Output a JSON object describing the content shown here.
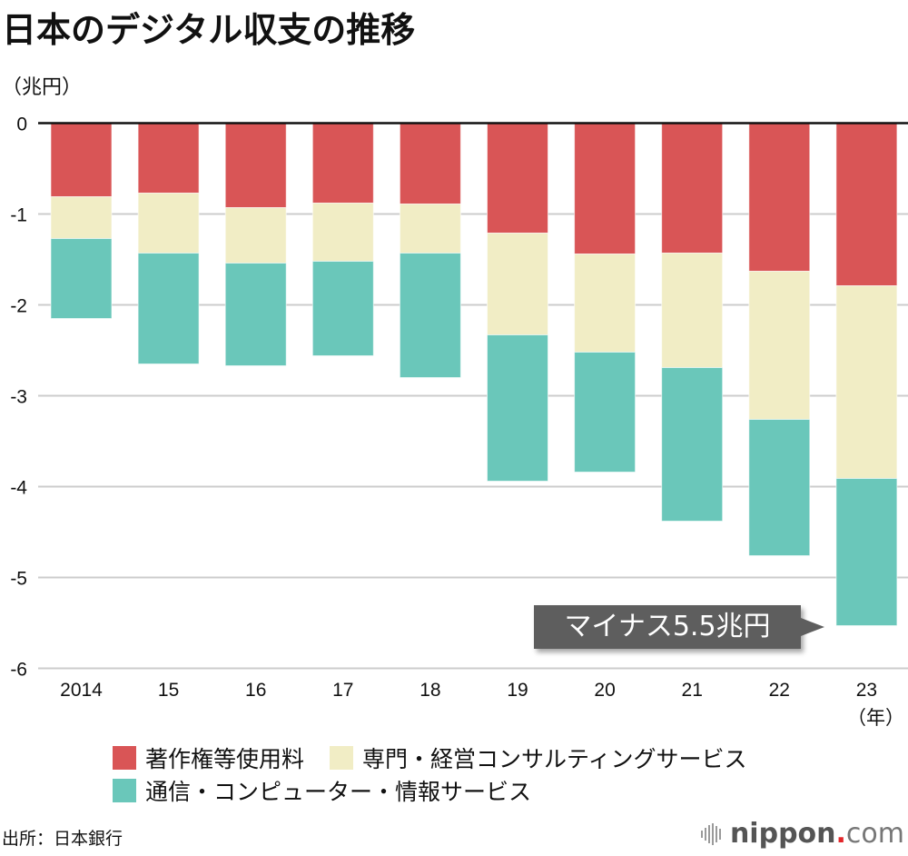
{
  "header": {
    "title": "日本のデジタル収支の推移",
    "unit_label": "（兆円）",
    "x_unit_label": "（年）"
  },
  "annotation": {
    "text": "マイナス5.5兆円"
  },
  "colors": {
    "royalties": "#d95556",
    "consulting": "#f1edc5",
    "telecom": "#6ac7ba",
    "annotation_bg": "#5e5e5e",
    "gridline": "#cccccc",
    "zero_line": "#111111",
    "logo_dot": "#e3262a"
  },
  "legend": [
    {
      "key": "royalties",
      "label": "著作権等使用料"
    },
    {
      "key": "consulting",
      "label": "専門・経営コンサルティングサービス"
    },
    {
      "key": "telecom",
      "label": "通信・コンピューター・情報サービス"
    }
  ],
  "footer": {
    "source": "出所：日本銀行",
    "logo_brand": "nippon",
    "logo_dot": ".",
    "logo_tld": "com"
  },
  "chart_data": {
    "type": "bar",
    "stacked": true,
    "title": "日本のデジタル収支の推移",
    "xlabel": "（年）",
    "ylabel": "（兆円）",
    "ylim": [
      -6,
      0
    ],
    "yticks": [
      0,
      -1,
      -2,
      -3,
      -4,
      -5,
      -6
    ],
    "ytick_labels": [
      "0",
      "-1",
      "-2",
      "-3",
      "-4",
      "-5",
      "-6"
    ],
    "grid": true,
    "legend_position": "bottom",
    "categories": [
      "2014",
      "15",
      "16",
      "17",
      "18",
      "19",
      "20",
      "21",
      "22",
      "23"
    ],
    "series": [
      {
        "name": "著作権等使用料",
        "key": "royalties",
        "values": [
          -0.81,
          -0.77,
          -0.93,
          -0.88,
          -0.89,
          -1.21,
          -1.44,
          -1.43,
          -1.63,
          -1.79
        ]
      },
      {
        "name": "専門・経営コンサルティングサービス",
        "key": "consulting",
        "values": [
          -0.46,
          -0.66,
          -0.61,
          -0.64,
          -0.54,
          -1.12,
          -1.08,
          -1.26,
          -1.63,
          -2.12
        ]
      },
      {
        "name": "通信・コンピューター・情報サービス",
        "key": "telecom",
        "values": [
          -0.88,
          -1.22,
          -1.13,
          -1.04,
          -1.37,
          -1.61,
          -1.32,
          -1.69,
          -1.5,
          -1.62
        ]
      }
    ],
    "totals": [
      -2.15,
      -2.65,
      -2.67,
      -2.56,
      -2.8,
      -3.94,
      -3.84,
      -4.38,
      -4.76,
      -5.53
    ],
    "annotations": [
      {
        "category": "23",
        "text": "マイナス5.5兆円"
      }
    ]
  }
}
